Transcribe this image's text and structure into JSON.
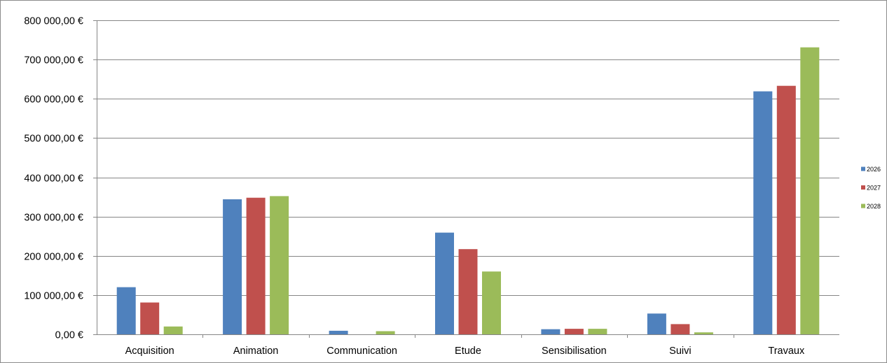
{
  "chart_data": {
    "type": "bar",
    "categories": [
      "Acquisition",
      "Animation",
      "Communication",
      "Etude",
      "Sensibilisation",
      "Suivi",
      "Travaux"
    ],
    "series": [
      {
        "name": "2026",
        "color": "#4f81bd",
        "values": [
          120000,
          344000,
          9000,
          259000,
          13000,
          53000,
          619000
        ]
      },
      {
        "name": "2027",
        "color": "#c0504d",
        "values": [
          81000,
          348000,
          0,
          217000,
          14000,
          26000,
          633000
        ]
      },
      {
        "name": "2028",
        "color": "#9bbb59",
        "values": [
          20000,
          352000,
          8000,
          160000,
          14000,
          5000,
          731000
        ]
      }
    ],
    "ylim": [
      0,
      800000
    ],
    "y_ticks": [
      0,
      100000,
      200000,
      300000,
      400000,
      500000,
      600000,
      700000,
      800000
    ],
    "y_tick_labels": [
      "0,00 €",
      "100 000,00 €",
      "200 000,00 €",
      "300 000,00 €",
      "400 000,00 €",
      "500 000,00 €",
      "600 000,00 €",
      "700 000,00 €",
      "800 000,00 €"
    ],
    "grid": true,
    "legend_position": "right",
    "title": "",
    "xlabel": "",
    "ylabel": ""
  }
}
